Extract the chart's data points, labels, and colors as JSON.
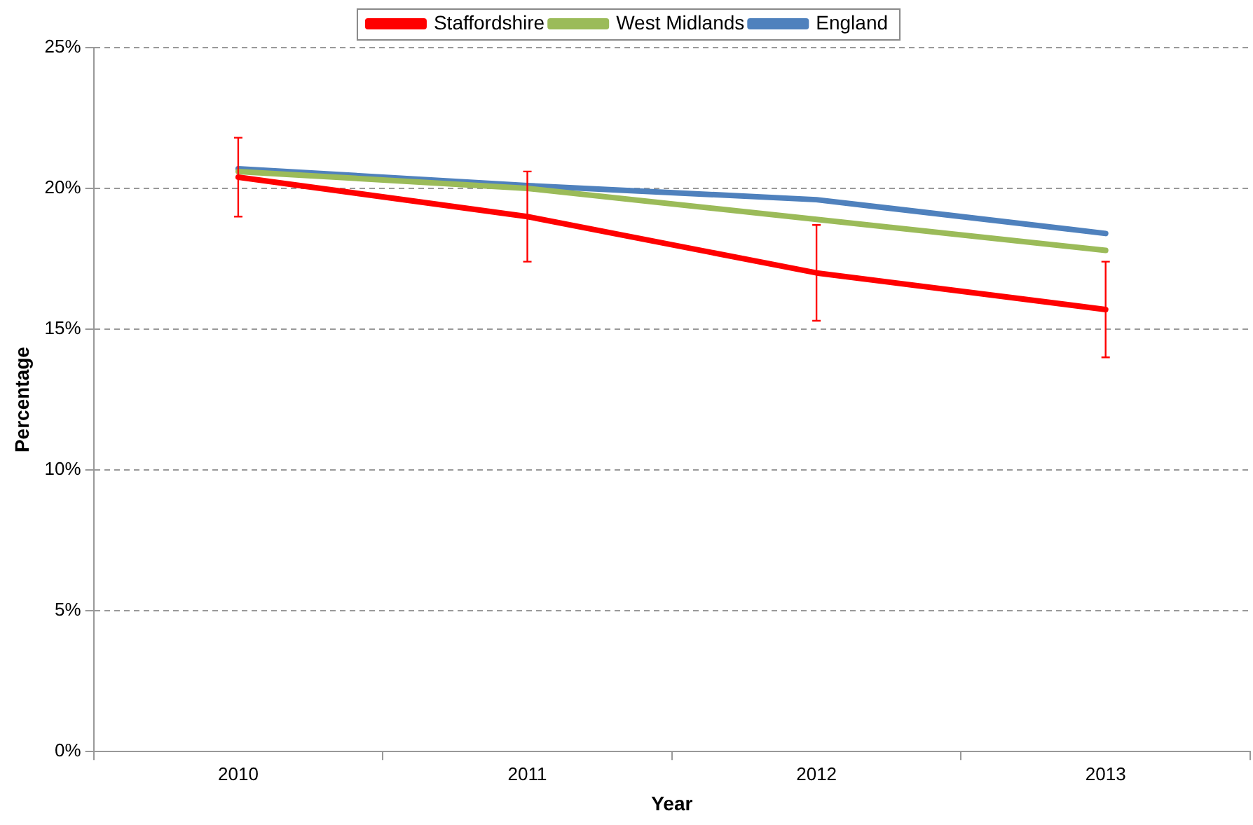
{
  "chart_data": {
    "type": "line",
    "xlabel": "Year",
    "ylabel": "Percentage",
    "categories": [
      "2010",
      "2011",
      "2012",
      "2013"
    ],
    "series": [
      {
        "name": "Staffordshire",
        "color": "#ff0000",
        "values": [
          20.4,
          19.0,
          17.0,
          15.7
        ],
        "errors": [
          1.4,
          1.6,
          1.7,
          1.7
        ]
      },
      {
        "name": "West Midlands",
        "color": "#9bbb59",
        "values": [
          20.6,
          20.0,
          18.9,
          17.8
        ]
      },
      {
        "name": "England",
        "color": "#4f81bd",
        "values": [
          20.7,
          20.1,
          19.6,
          18.4
        ]
      }
    ],
    "ylim": [
      0,
      25
    ],
    "yticks": [
      {
        "value": 0,
        "label": "0%"
      },
      {
        "value": 5,
        "label": "5%"
      },
      {
        "value": 10,
        "label": "10%"
      },
      {
        "value": 15,
        "label": "15%"
      },
      {
        "value": 20,
        "label": "20%"
      },
      {
        "value": 25,
        "label": "25%"
      }
    ],
    "grid": "y",
    "legend": "top",
    "marker": "none",
    "line_style": "solid"
  }
}
